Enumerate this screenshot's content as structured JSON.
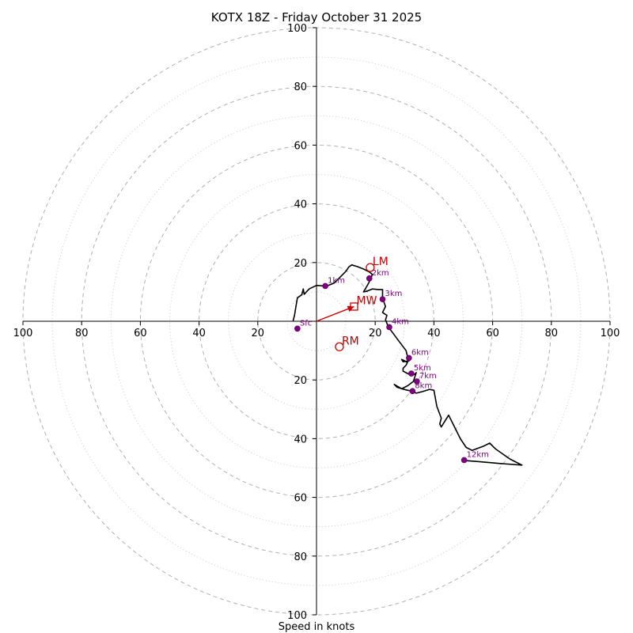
{
  "chart_data": {
    "type": "hodograph",
    "title": "KOTX 18Z - Friday October 31 2025",
    "xlabel": "Speed in knots",
    "units": "knots",
    "range": [
      -100,
      100
    ],
    "rings_major": [
      20,
      40,
      60,
      80,
      100
    ],
    "rings_minor": [
      10,
      30,
      50,
      70,
      90
    ],
    "tick_values": [
      20,
      40,
      60,
      80,
      100
    ],
    "tick_labels": [
      "20",
      "40",
      "60",
      "80",
      "100"
    ],
    "colors": {
      "trace": "#000000",
      "height_marker": "#800080",
      "motion": "#cc0000",
      "grid": "#b0b0b0"
    },
    "trace_uv": [
      [
        -8,
        0
      ],
      [
        -7.5,
        2
      ],
      [
        -7,
        5
      ],
      [
        -6.5,
        8
      ],
      [
        -5,
        9
      ],
      [
        -4.5,
        11
      ],
      [
        -4.2,
        9.2
      ],
      [
        -2.5,
        11
      ],
      [
        0,
        12.2
      ],
      [
        3,
        12
      ],
      [
        4,
        12.2
      ],
      [
        6,
        13
      ],
      [
        8,
        15
      ],
      [
        10,
        17
      ],
      [
        11,
        18.5
      ],
      [
        12,
        19.2
      ],
      [
        14,
        18.6
      ],
      [
        16,
        17.8
      ],
      [
        18,
        16.8
      ],
      [
        19,
        16
      ],
      [
        18.5,
        14.5
      ],
      [
        17.5,
        12.5
      ],
      [
        16,
        10
      ],
      [
        17,
        10.2
      ],
      [
        19,
        11
      ],
      [
        21,
        10.8
      ],
      [
        22.5,
        10.8
      ],
      [
        22.5,
        8.5
      ],
      [
        22.5,
        7.5
      ],
      [
        23,
        6.5
      ],
      [
        23.5,
        5
      ],
      [
        23,
        4
      ],
      [
        22.5,
        3
      ],
      [
        24,
        2
      ],
      [
        23.5,
        0.5
      ],
      [
        24.5,
        -2
      ],
      [
        26,
        -4
      ],
      [
        27.5,
        -6
      ],
      [
        29,
        -8
      ],
      [
        30.5,
        -10
      ],
      [
        31,
        -12
      ],
      [
        31.5,
        -13.5
      ],
      [
        29.5,
        -13.8
      ],
      [
        29,
        -13
      ],
      [
        31,
        -14
      ],
      [
        30.5,
        -15
      ],
      [
        29.5,
        -16
      ],
      [
        29.5,
        -17
      ],
      [
        31,
        -17.8
      ],
      [
        32.5,
        -18.5
      ],
      [
        33.5,
        -18
      ],
      [
        34,
        -17.5
      ],
      [
        33,
        -20.5
      ],
      [
        31,
        -22
      ],
      [
        29,
        -23
      ],
      [
        26.5,
        -21.5
      ],
      [
        27.5,
        -22.5
      ],
      [
        29,
        -23
      ],
      [
        31,
        -23.5
      ],
      [
        32.5,
        -23.8
      ],
      [
        34,
        -24.5
      ],
      [
        36,
        -24
      ],
      [
        38.5,
        -23.2
      ],
      [
        40,
        -23.5
      ],
      [
        41,
        -29
      ],
      [
        42.5,
        -33
      ],
      [
        42,
        -35
      ],
      [
        42.5,
        -36
      ],
      [
        45,
        -32
      ],
      [
        49,
        -40
      ],
      [
        51,
        -43
      ],
      [
        53,
        -44
      ],
      [
        57,
        -42.5
      ],
      [
        59,
        -41.5
      ],
      [
        61,
        -43.5
      ],
      [
        66,
        -47
      ],
      [
        70,
        -49
      ],
      [
        63,
        -48.5
      ],
      [
        55,
        -47.8
      ],
      [
        51,
        -47.5
      ],
      [
        50.5,
        -47.3
      ]
    ],
    "height_markers": [
      {
        "label": "Sfc",
        "u": -6.5,
        "v": -2.5
      },
      {
        "label": "1km",
        "u": 3,
        "v": 12
      },
      {
        "label": "2km",
        "u": 18,
        "v": 14.6
      },
      {
        "label": "3km",
        "u": 22.5,
        "v": 7.5
      },
      {
        "label": "4km",
        "u": 24.8,
        "v": -2
      },
      {
        "label": "5km",
        "u": 32.3,
        "v": -17.8
      },
      {
        "label": "6km",
        "u": 31.5,
        "v": -12.5
      },
      {
        "label": "7km",
        "u": 34.2,
        "v": -20.5
      },
      {
        "label": "8km",
        "u": 32.7,
        "v": -23.8
      },
      {
        "label": "12km",
        "u": 50.3,
        "v": -47.3
      }
    ],
    "storm_motions": [
      {
        "label": "LM",
        "u": 18.3,
        "v": 18.3,
        "marker": "circle"
      },
      {
        "label": "MW",
        "u": 12.8,
        "v": 5,
        "marker": "square"
      },
      {
        "label": "RM",
        "u": 7.8,
        "v": -8.7,
        "marker": "circle"
      }
    ]
  }
}
